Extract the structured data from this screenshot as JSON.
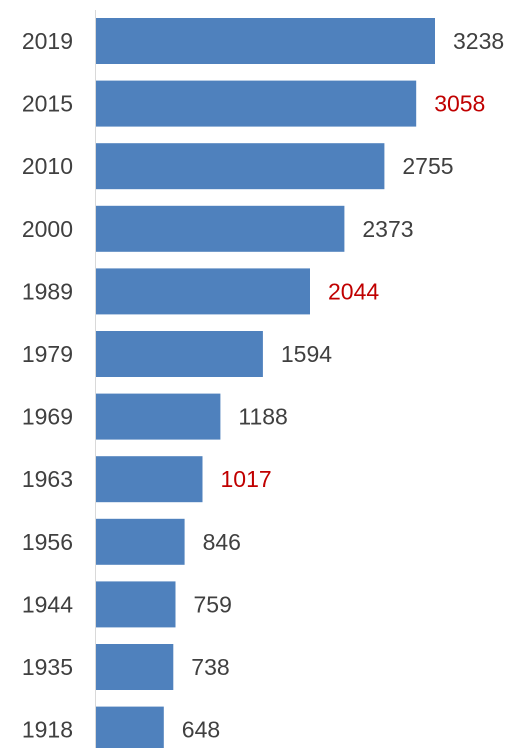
{
  "chart_data": {
    "type": "bar",
    "orientation": "horizontal",
    "categories": [
      "2019",
      "2015",
      "2010",
      "2000",
      "1989",
      "1979",
      "1969",
      "1963",
      "1956",
      "1944",
      "1935",
      "1918"
    ],
    "values": [
      3238,
      3058,
      2755,
      2373,
      2044,
      1594,
      1188,
      1017,
      846,
      759,
      738,
      648
    ],
    "value_labels": [
      "3238",
      "3058",
      "2755",
      "2373",
      "2044",
      "1594",
      "1188",
      "1017",
      "846",
      "759",
      "738",
      "648"
    ],
    "highlighted": [
      false,
      true,
      false,
      false,
      true,
      false,
      false,
      true,
      false,
      false,
      false,
      false
    ],
    "title": "",
    "xlabel": "",
    "ylabel": "",
    "xlim": [
      0,
      3400
    ],
    "grid": false,
    "legend": "none",
    "colors": {
      "bar": "#4f81bd",
      "label": "#404040",
      "highlight_label": "#c00000",
      "axis": "#d9d9d9"
    }
  }
}
